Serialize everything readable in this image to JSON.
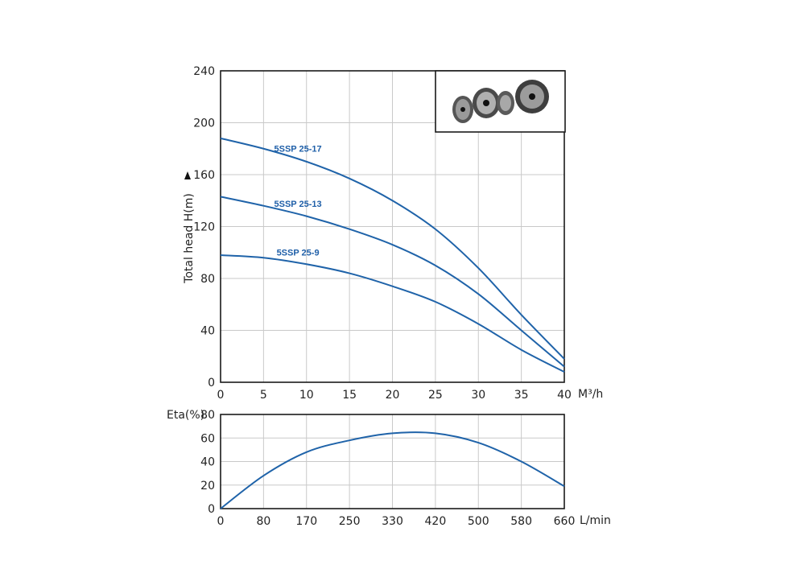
{
  "chart_data": [
    {
      "type": "line",
      "name": "head-curve",
      "xlabel": "M³/h",
      "ylabel": "Total head H(m)",
      "xlim": [
        0,
        40
      ],
      "ylim": [
        0,
        240
      ],
      "x_ticks": [
        "0",
        "5",
        "10",
        "15",
        "20",
        "25",
        "30",
        "35",
        "40"
      ],
      "y_ticks": [
        "0",
        "40",
        "80",
        "120",
        "160",
        "200",
        "240"
      ],
      "grid": true,
      "series": [
        {
          "name": "5SSP 25-17",
          "x": [
            0,
            5,
            10,
            15,
            20,
            25,
            30,
            35,
            40
          ],
          "y": [
            188,
            180,
            170,
            157,
            140,
            118,
            88,
            52,
            18
          ]
        },
        {
          "name": "5SSP 25-13",
          "x": [
            0,
            5,
            10,
            15,
            20,
            25,
            30,
            35,
            40
          ],
          "y": [
            143,
            136,
            128,
            118,
            106,
            90,
            68,
            40,
            12
          ]
        },
        {
          "name": "5SSP 25-9",
          "x": [
            0,
            5,
            10,
            15,
            20,
            25,
            30,
            35,
            40
          ],
          "y": [
            98,
            96,
            91,
            84,
            74,
            62,
            45,
            25,
            8
          ]
        }
      ]
    },
    {
      "type": "line",
      "name": "efficiency-curve",
      "xlabel": "L/min",
      "ylabel": "Eta(%)",
      "xlim": [
        0,
        660
      ],
      "ylim": [
        0,
        80
      ],
      "x_ticks": [
        "0",
        "80",
        "170",
        "250",
        "330",
        "420",
        "500",
        "580",
        "660"
      ],
      "y_ticks": [
        "0",
        "20",
        "40",
        "60",
        "80"
      ],
      "grid": true,
      "series": [
        {
          "name": "Eta",
          "x": [
            0,
            80,
            170,
            250,
            330,
            420,
            500,
            580,
            660
          ],
          "y": [
            0,
            28,
            48,
            58,
            64,
            64,
            56,
            40,
            19
          ]
        }
      ]
    }
  ],
  "icons": {
    "photo": "impeller-photo"
  }
}
